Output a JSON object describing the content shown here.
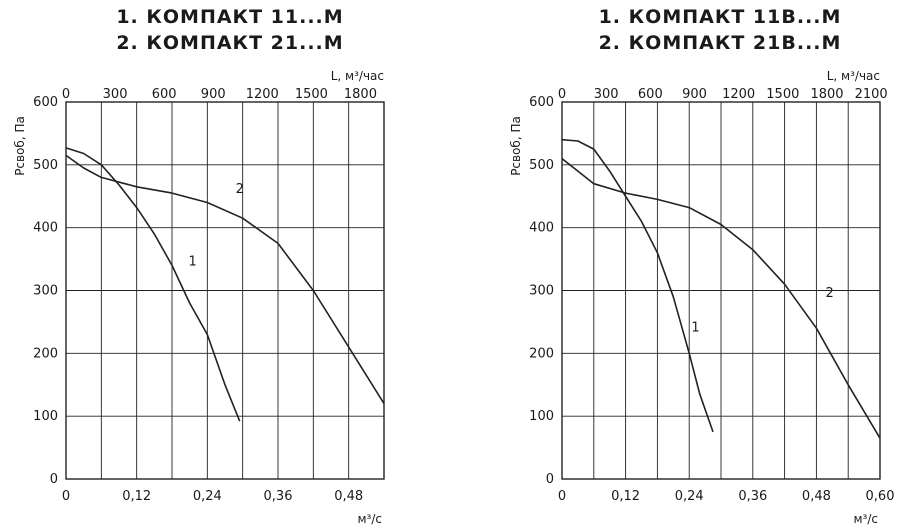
{
  "chart_data": [
    {
      "type": "line",
      "title_lines": [
        "1. КОМПАКТ 11...М",
        "2. КОМПАКТ 21...М"
      ],
      "xlabel": "м³/с",
      "x2label": "L, м³/час",
      "ylabel": "Pсвоб, Па",
      "xlim": [
        0,
        0.54
      ],
      "x_ticks": [
        "0",
        "0,12",
        "0,24",
        "0,36",
        "0,48"
      ],
      "x2lim": [
        0,
        1944
      ],
      "x2_ticks": [
        "0",
        "300",
        "600",
        "900",
        "1200",
        "1500",
        "1800"
      ],
      "ylim": [
        0,
        600
      ],
      "y_ticks": [
        "0",
        "100",
        "200",
        "300",
        "400",
        "500",
        "600"
      ],
      "grid": true,
      "series": [
        {
          "name": "1",
          "x": [
            0,
            0.03,
            0.06,
            0.09,
            0.12,
            0.15,
            0.18,
            0.21,
            0.24,
            0.27,
            0.295
          ],
          "y": [
            527,
            518,
            500,
            468,
            432,
            390,
            340,
            280,
            230,
            150,
            92
          ]
        },
        {
          "name": "2",
          "x": [
            0,
            0.03,
            0.06,
            0.12,
            0.18,
            0.24,
            0.3,
            0.36,
            0.42,
            0.48,
            0.54
          ],
          "y": [
            515,
            495,
            480,
            465,
            455,
            440,
            415,
            375,
            300,
            210,
            120
          ]
        }
      ]
    },
    {
      "type": "line",
      "title_lines": [
        "1. КОМПАКТ 11В...М",
        "2. КОМПАКТ 21В...М"
      ],
      "xlabel": "м³/с",
      "x2label": "L, м³/час",
      "ylabel": "Pсвоб, Па",
      "xlim": [
        0,
        0.6
      ],
      "x_ticks": [
        "0",
        "0,12",
        "0,24",
        "0,36",
        "0,48",
        "0,60"
      ],
      "x2lim": [
        0,
        2160
      ],
      "x2_ticks": [
        "0",
        "300",
        "600",
        "900",
        "1200",
        "1500",
        "1800",
        "2100"
      ],
      "ylim": [
        0,
        600
      ],
      "y_ticks": [
        "0",
        "100",
        "200",
        "300",
        "400",
        "500",
        "600"
      ],
      "grid": true,
      "series": [
        {
          "name": "1",
          "x": [
            0,
            0.03,
            0.06,
            0.09,
            0.12,
            0.15,
            0.18,
            0.21,
            0.24,
            0.26,
            0.285
          ],
          "y": [
            540,
            538,
            525,
            490,
            450,
            410,
            360,
            290,
            200,
            135,
            75
          ]
        },
        {
          "name": "2",
          "x": [
            0,
            0.03,
            0.06,
            0.12,
            0.18,
            0.24,
            0.3,
            0.36,
            0.42,
            0.48,
            0.54,
            0.6
          ],
          "y": [
            510,
            490,
            470,
            455,
            445,
            432,
            405,
            365,
            310,
            240,
            150,
            65
          ]
        }
      ]
    }
  ]
}
